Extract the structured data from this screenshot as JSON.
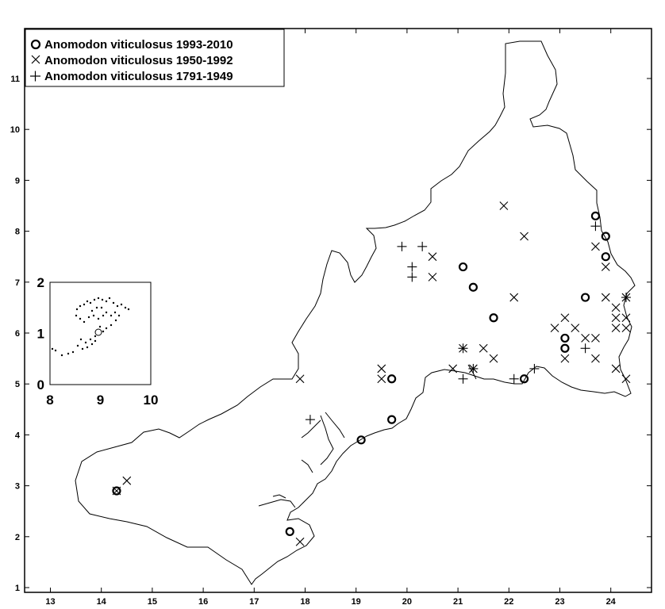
{
  "chart_data": {
    "type": "scatter",
    "title": "",
    "xlabel": "",
    "ylabel": "",
    "xlim": [
      12.5,
      24.9
    ],
    "ylim": [
      0.9,
      12.0
    ],
    "x_ticks": [
      13,
      14,
      15,
      16,
      17,
      18,
      19,
      20,
      21,
      22,
      23,
      24
    ],
    "y_ticks": [
      1,
      2,
      3,
      4,
      5,
      6,
      7,
      8,
      9,
      10,
      11
    ],
    "grid": false,
    "legend_position": "top-left",
    "series": [
      {
        "name": "Anomodon viticulosus 1993-2010",
        "marker": "circle",
        "points": [
          [
            14.3,
            2.9
          ],
          [
            17.7,
            2.1
          ],
          [
            19.1,
            3.9
          ],
          [
            19.7,
            4.3
          ],
          [
            19.7,
            5.1
          ],
          [
            21.1,
            7.3
          ],
          [
            21.3,
            6.9
          ],
          [
            21.7,
            6.3
          ],
          [
            22.3,
            5.1
          ],
          [
            23.1,
            5.9
          ],
          [
            23.1,
            5.7
          ],
          [
            23.5,
            6.7
          ],
          [
            23.7,
            8.3
          ],
          [
            23.9,
            7.9
          ],
          [
            23.9,
            7.5
          ]
        ]
      },
      {
        "name": "Anomodon viticulosus 1950-1992",
        "marker": "x",
        "points": [
          [
            14.3,
            2.9
          ],
          [
            14.5,
            3.1
          ],
          [
            17.9,
            1.9
          ],
          [
            17.9,
            5.1
          ],
          [
            19.5,
            5.3
          ],
          [
            19.5,
            5.1
          ],
          [
            20.5,
            7.5
          ],
          [
            20.5,
            7.1
          ],
          [
            20.9,
            5.3
          ],
          [
            21.1,
            5.7
          ],
          [
            21.3,
            5.3
          ],
          [
            21.5,
            5.7
          ],
          [
            21.7,
            5.5
          ],
          [
            21.9,
            8.5
          ],
          [
            22.1,
            6.7
          ],
          [
            22.3,
            7.9
          ],
          [
            22.9,
            6.1
          ],
          [
            23.1,
            6.3
          ],
          [
            23.1,
            5.5
          ],
          [
            23.3,
            6.1
          ],
          [
            23.5,
            5.9
          ],
          [
            23.7,
            5.9
          ],
          [
            23.7,
            5.5
          ],
          [
            23.7,
            7.7
          ],
          [
            23.9,
            7.3
          ],
          [
            23.9,
            6.7
          ],
          [
            24.1,
            6.5
          ],
          [
            24.1,
            6.3
          ],
          [
            24.1,
            6.1
          ],
          [
            24.3,
            6.3
          ],
          [
            24.3,
            6.1
          ],
          [
            24.1,
            5.3
          ],
          [
            24.3,
            5.1
          ],
          [
            24.3,
            6.7
          ]
        ]
      },
      {
        "name": "Anomodon viticulosus 1791-1949",
        "marker": "plus",
        "points": [
          [
            18.1,
            4.3
          ],
          [
            19.9,
            7.7
          ],
          [
            20.1,
            7.3
          ],
          [
            20.1,
            7.1
          ],
          [
            20.3,
            7.7
          ],
          [
            21.1,
            5.1
          ],
          [
            21.3,
            5.3
          ],
          [
            21.1,
            5.7
          ],
          [
            22.1,
            5.1
          ],
          [
            22.5,
            5.3
          ],
          [
            23.5,
            5.7
          ],
          [
            23.7,
            8.1
          ],
          [
            24.3,
            6.7
          ]
        ]
      }
    ],
    "inset": {
      "x_ticks": [
        8,
        9,
        10
      ],
      "y_ticks": [
        0,
        1,
        2
      ],
      "xlim": [
        8,
        10
      ],
      "ylim": [
        0,
        2
      ]
    }
  },
  "colors": {
    "ink": "#000000",
    "background": "#ffffff"
  }
}
